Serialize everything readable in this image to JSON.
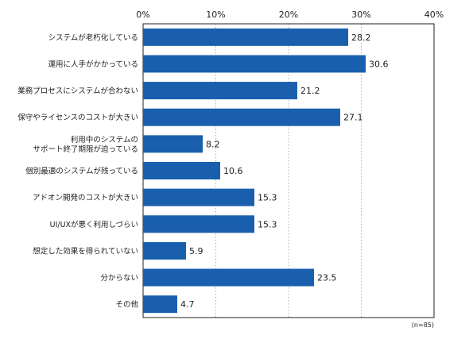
{
  "chart_data": {
    "type": "bar",
    "orientation": "horizontal",
    "categories": [
      "システムが老朽化している",
      "運用に人手がかかっている",
      "業務プロセスにシステムが合わない",
      "保守やライセンスのコストが大きい",
      "利用中のシステムの\nサポート終了期限が迫っている",
      "個別最適のシステムが残っている",
      "アドオン開発のコストが大きい",
      "UI/UXが悪く利用しづらい",
      "想定した効果を得られていない",
      "分からない",
      "その他"
    ],
    "values": [
      28.2,
      30.6,
      21.2,
      27.1,
      8.2,
      10.6,
      15.3,
      15.3,
      5.9,
      23.5,
      4.7
    ],
    "value_labels": [
      "28.2",
      "30.6",
      "21.2",
      "27.1",
      "8.2",
      "10.6",
      "15.3",
      "15.3",
      "5.9",
      "23.5",
      "4.7"
    ],
    "xlim": [
      0,
      40
    ],
    "xticks": [
      0,
      10,
      20,
      30,
      40
    ],
    "xtick_labels": [
      "0%",
      "10%",
      "20%",
      "30%",
      "40%"
    ],
    "gridlines": "vertical dotted",
    "axis_position": "top",
    "bar_color": "#1a5fad",
    "note": "(n=85)"
  }
}
